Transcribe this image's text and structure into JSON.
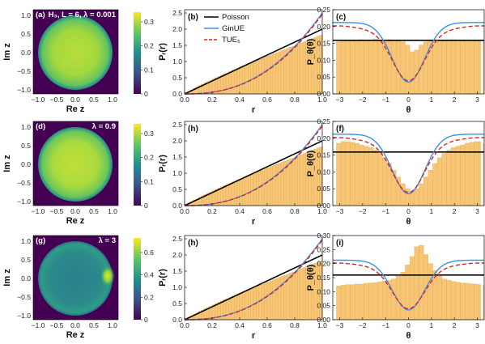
{
  "colors": {
    "bar_fill": "#f6c676",
    "bar_stroke": "#e5ad52",
    "poisson": "#000000",
    "ginue": "#3f8fe0",
    "tue": "#e0231f",
    "viridis": [
      "#440154",
      "#31688e",
      "#35b779",
      "#fde725"
    ]
  },
  "legend": {
    "entries": [
      "Poisson",
      "GinUE",
      "TUE₅"
    ]
  },
  "density_maps": [
    {
      "panel_label": "(a)",
      "annotation": "H₃, L = 6, λ = 0.001",
      "colorbar_ticks": [
        "0.3",
        "0.2",
        "0.1",
        "0"
      ],
      "xlabel": "Re z",
      "ylabel": "Im z",
      "xticks": [
        "−1.0",
        "−0.5",
        "0.0",
        "0.5",
        "1.0"
      ],
      "yticks": [
        "1.0",
        "0.5",
        "0.0",
        "−0.5",
        "−1.0"
      ]
    },
    {
      "panel_label": "(d)",
      "annotation": "λ = 0.9",
      "colorbar_ticks": [
        "0.3",
        "0.2",
        "0.1",
        "0"
      ],
      "xlabel": "Re z",
      "ylabel": "Im z",
      "xticks": [
        "−1.0",
        "−0.5",
        "0.0",
        "0.5",
        "1.0"
      ],
      "yticks": [
        "1.0",
        "0.5",
        "0.0",
        "−0.5",
        "−1.0"
      ]
    },
    {
      "panel_label": "(g)",
      "annotation": "λ = 3",
      "colorbar_ticks": [
        "0.6",
        "0.4",
        "0.2",
        "0"
      ],
      "xlabel": "Re z",
      "ylabel": "Im z",
      "xticks": [
        "−1.0",
        "−0.5",
        "0.0",
        "0.5",
        "1.0"
      ],
      "yticks": [
        "1.0",
        "0.5",
        "0.0",
        "−0.5",
        "−1.0"
      ]
    }
  ],
  "chart_data": [
    {
      "type": "bar",
      "panel_label": "(b)",
      "xlabel": "r",
      "ylabel": "Pᵣ(r)",
      "xlim": [
        0,
        1
      ],
      "ylim": [
        0,
        2.6
      ],
      "xticks": [
        "0.0",
        "0.2",
        "0.4",
        "0.6",
        "0.8",
        "1.0"
      ],
      "yticks": [
        "0.0",
        "0.5",
        "1.0",
        "1.5",
        "2.0",
        "2.5"
      ],
      "histogram": {
        "bin_width": 0.02,
        "values": [
          0.03,
          0.08,
          0.12,
          0.17,
          0.21,
          0.26,
          0.3,
          0.34,
          0.38,
          0.42,
          0.46,
          0.5,
          0.54,
          0.58,
          0.62,
          0.65,
          0.69,
          0.73,
          0.76,
          0.8,
          0.83,
          0.87,
          0.9,
          0.94,
          0.97,
          1.0,
          1.04,
          1.07,
          1.1,
          1.14,
          1.17,
          1.21,
          1.24,
          1.27,
          1.31,
          1.34,
          1.37,
          1.41,
          1.44,
          1.47,
          1.5,
          1.54,
          1.57,
          1.61,
          1.64,
          1.68,
          1.71,
          1.74,
          1.78,
          1.81
        ]
      },
      "series": [
        {
          "name": "Poisson",
          "formula": "2r"
        },
        {
          "name": "GinUE",
          "formula": "2.5 r^2.4"
        },
        {
          "name": "TUE₅",
          "formula": "2.46 r^2.4"
        }
      ]
    },
    {
      "type": "bar",
      "panel_label": "(c)",
      "xlabel": "θ",
      "ylabel": "P_θ(θ)",
      "xlim": [
        -3.3,
        3.3
      ],
      "ylim": [
        0,
        0.25
      ],
      "xticks": [
        "−3",
        "−2",
        "−1",
        "0",
        "1",
        "2",
        "3"
      ],
      "yticks": [
        "0.00",
        "0.05",
        "0.10",
        "0.15",
        "0.20",
        "0.25"
      ],
      "histogram": {
        "bin_width": 0.2,
        "values": [
          0.155,
          0.158,
          0.16,
          0.157,
          0.159,
          0.161,
          0.158,
          0.16,
          0.162,
          0.159,
          0.16,
          0.161,
          0.158,
          0.16,
          0.155,
          0.145,
          0.125,
          0.13,
          0.145,
          0.155,
          0.158,
          0.161,
          0.159,
          0.16,
          0.158,
          0.161,
          0.159,
          0.16,
          0.158,
          0.16,
          0.159,
          0.157,
          0.156
        ]
      },
      "series": [
        {
          "name": "Poisson",
          "formula": "1/(2π)"
        },
        {
          "name": "GinUE",
          "formula": "0.212 − 0.177 exp(−θ²/1.0)"
        },
        {
          "name": "TUE₅",
          "formula": "0.198 − 0.163 exp(−θ²/1.0)"
        }
      ]
    },
    {
      "type": "bar",
      "panel_label": "(h)",
      "xlabel": "r",
      "ylabel": "Pᵣ(r)",
      "xlim": [
        0,
        1
      ],
      "ylim": [
        0,
        2.6
      ],
      "xticks": [
        "0.0",
        "0.2",
        "0.4",
        "0.6",
        "0.8",
        "1.0"
      ],
      "yticks": [
        "0.0",
        "0.5",
        "1.0",
        "1.5",
        "2.0",
        "2.5"
      ],
      "histogram": {
        "bin_width": 0.02,
        "values": [
          0.03,
          0.08,
          0.12,
          0.17,
          0.21,
          0.26,
          0.3,
          0.34,
          0.38,
          0.42,
          0.46,
          0.5,
          0.54,
          0.58,
          0.62,
          0.65,
          0.69,
          0.73,
          0.76,
          0.8,
          0.83,
          0.87,
          0.9,
          0.94,
          0.97,
          1.0,
          1.04,
          1.07,
          1.1,
          1.14,
          1.17,
          1.21,
          1.24,
          1.27,
          1.31,
          1.34,
          1.37,
          1.41,
          1.44,
          1.47,
          1.5,
          1.54,
          1.57,
          1.61,
          1.64,
          1.68,
          1.71,
          1.74,
          1.78,
          1.81
        ]
      },
      "series": [
        {
          "name": "Poisson",
          "formula": "2r"
        },
        {
          "name": "GinUE",
          "formula": "2.5 r^2.4"
        },
        {
          "name": "TUE₅",
          "formula": "2.46 r^2.4"
        }
      ]
    },
    {
      "type": "bar",
      "panel_label": "(f)",
      "xlabel": "θ",
      "ylabel": "P_θ(θ)",
      "xlim": [
        -3.3,
        3.3
      ],
      "ylim": [
        0,
        0.25
      ],
      "xticks": [
        "−3",
        "−2",
        "−1",
        "0",
        "1",
        "2",
        "3"
      ],
      "yticks": [
        "0.00",
        "0.05",
        "0.10",
        "0.15",
        "0.20",
        "0.25"
      ],
      "histogram": {
        "bin_width": 0.2,
        "values": [
          0.185,
          0.19,
          0.19,
          0.188,
          0.185,
          0.18,
          0.176,
          0.172,
          0.165,
          0.155,
          0.142,
          0.125,
          0.105,
          0.085,
          0.065,
          0.05,
          0.04,
          0.05,
          0.065,
          0.085,
          0.105,
          0.125,
          0.142,
          0.155,
          0.165,
          0.172,
          0.176,
          0.18,
          0.185,
          0.188,
          0.19,
          0.19,
          0.185
        ]
      },
      "series": [
        {
          "name": "Poisson",
          "formula": "1/(2π)"
        },
        {
          "name": "GinUE",
          "formula": "0.212 − 0.177 exp(−θ²/1.0)"
        },
        {
          "name": "TUE₅",
          "formula": "0.198 − 0.163 exp(−θ²/1.0)"
        }
      ]
    },
    {
      "type": "bar",
      "panel_label": "(h)",
      "xlabel": "r",
      "ylabel": "Pᵣ(r)",
      "xlim": [
        0,
        1
      ],
      "ylim": [
        0,
        2.6
      ],
      "xticks": [
        "0.0",
        "0.2",
        "0.4",
        "0.6",
        "0.8",
        "1.0"
      ],
      "yticks": [
        "0.0",
        "0.5",
        "1.0",
        "1.5",
        "2.0",
        "2.5"
      ],
      "histogram": {
        "bin_width": 0.02,
        "values": [
          0.03,
          0.08,
          0.12,
          0.17,
          0.21,
          0.26,
          0.3,
          0.34,
          0.38,
          0.42,
          0.46,
          0.5,
          0.54,
          0.58,
          0.62,
          0.65,
          0.69,
          0.73,
          0.76,
          0.8,
          0.83,
          0.87,
          0.9,
          0.94,
          0.97,
          1.0,
          1.04,
          1.07,
          1.1,
          1.14,
          1.17,
          1.21,
          1.24,
          1.27,
          1.31,
          1.34,
          1.37,
          1.41,
          1.44,
          1.47,
          1.5,
          1.54,
          1.57,
          1.61,
          1.64,
          1.68,
          1.71,
          1.74,
          1.78,
          1.81
        ]
      },
      "series": [
        {
          "name": "Poisson",
          "formula": "2r"
        },
        {
          "name": "GinUE",
          "formula": "2.5 r^2.4"
        },
        {
          "name": "TUE₅",
          "formula": "2.46 r^2.4"
        }
      ]
    },
    {
      "type": "bar",
      "panel_label": "(i)",
      "xlabel": "θ",
      "ylabel": "P_θ(θ)",
      "xlim": [
        -3.3,
        3.3
      ],
      "ylim": [
        0,
        0.3
      ],
      "xticks": [
        "−3",
        "−2",
        "−1",
        "0",
        "1",
        "2",
        "3"
      ],
      "yticks": [
        "0.00",
        "0.05",
        "0.10",
        "0.15",
        "0.20",
        "0.25",
        "0.30"
      ],
      "histogram": {
        "bin_width": 0.2,
        "values": [
          0.12,
          0.123,
          0.125,
          0.125,
          0.126,
          0.127,
          0.13,
          0.131,
          0.132,
          0.135,
          0.138,
          0.14,
          0.145,
          0.155,
          0.17,
          0.195,
          0.225,
          0.26,
          0.265,
          0.232,
          0.2,
          0.175,
          0.155,
          0.145,
          0.14,
          0.136,
          0.133,
          0.131,
          0.13,
          0.128,
          0.126,
          0.125,
          0.122
        ]
      },
      "series": [
        {
          "name": "Poisson",
          "formula": "1/(2π)"
        },
        {
          "name": "GinUE",
          "formula": "0.212 − 0.177 exp(−θ²/1.0)"
        },
        {
          "name": "TUE₅",
          "formula": "0.198 − 0.163 exp(−θ²/1.0)"
        }
      ]
    }
  ]
}
